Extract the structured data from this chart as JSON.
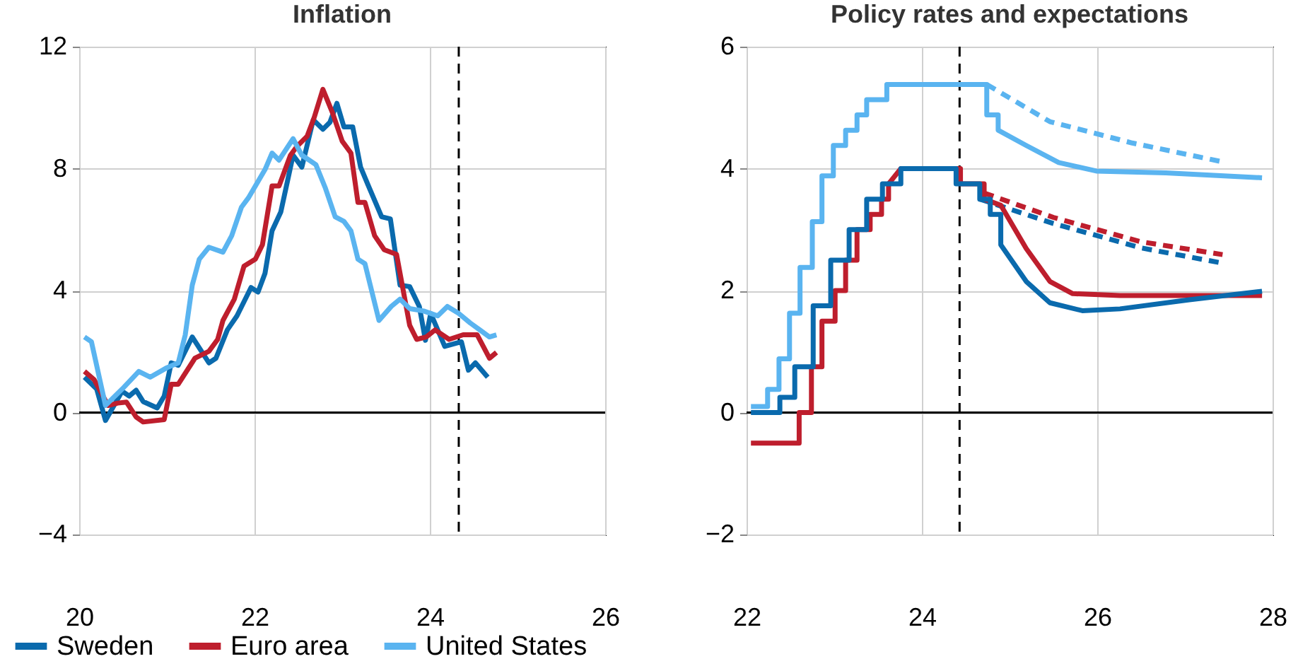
{
  "chart_data": [
    {
      "type": "line",
      "title": "Inflation",
      "xlim": [
        20,
        26
      ],
      "xticks": [
        20,
        22,
        24,
        26
      ],
      "ylim": [
        -4,
        12
      ],
      "yticks": [
        -4,
        0,
        4,
        8,
        12
      ],
      "grid": true,
      "legend": "bottom",
      "ref_lines": [
        {
          "axis": "x",
          "value": 24.33,
          "line_style": "dashed",
          "color": "#000000"
        },
        {
          "axis": "y",
          "value": 0,
          "line_style": "solid",
          "color": "#000000"
        }
      ],
      "series": [
        {
          "name": "Sweden",
          "color": "#0a6aad",
          "x": [
            20.06,
            20.2,
            20.3,
            20.49,
            20.57,
            20.65,
            20.73,
            20.89,
            20.97,
            21.05,
            21.13,
            21.29,
            21.48,
            21.56,
            21.69,
            21.8,
            21.96,
            22.04,
            22.12,
            22.2,
            22.3,
            22.44,
            22.54,
            22.67,
            22.78,
            22.86,
            22.94,
            23.02,
            23.12,
            23.21,
            23.29,
            23.45,
            23.55,
            23.66,
            23.77,
            23.88,
            23.95,
            24.01,
            24.17,
            24.36,
            24.44,
            24.52,
            24.66
          ],
          "values": [
            1.16,
            0.77,
            -0.26,
            0.7,
            0.54,
            0.73,
            0.36,
            0.15,
            0.54,
            1.63,
            1.55,
            2.48,
            1.63,
            1.78,
            2.71,
            3.17,
            4.1,
            3.95,
            4.57,
            5.96,
            6.58,
            8.44,
            8.05,
            9.6,
            9.29,
            9.52,
            10.14,
            9.37,
            9.37,
            8.05,
            7.5,
            6.42,
            6.35,
            4.18,
            4.13,
            3.48,
            2.37,
            3.25,
            2.17,
            2.32,
            1.39,
            1.63,
            1.16
          ]
        },
        {
          "name": "Euro area",
          "color": "#be1e2d",
          "x": [
            20.06,
            20.17,
            20.33,
            20.44,
            20.54,
            20.65,
            20.73,
            20.97,
            21.05,
            21.13,
            21.32,
            21.48,
            21.58,
            21.64,
            21.77,
            21.88,
            22.01,
            22.09,
            22.2,
            22.28,
            22.41,
            22.49,
            22.6,
            22.68,
            22.78,
            22.89,
            23.0,
            23.1,
            23.18,
            23.26,
            23.37,
            23.48,
            23.62,
            23.72,
            23.77,
            23.85,
            23.96,
            24.06,
            24.22,
            24.38,
            24.54,
            24.68,
            24.76
          ],
          "values": [
            1.35,
            1.08,
            0.23,
            0.31,
            0.34,
            -0.15,
            -0.31,
            -0.23,
            0.93,
            0.93,
            1.78,
            2.01,
            2.4,
            3.02,
            3.72,
            4.8,
            5.03,
            5.5,
            7.43,
            7.43,
            8.44,
            8.75,
            9.06,
            9.67,
            10.6,
            9.83,
            8.9,
            8.51,
            6.89,
            6.89,
            5.8,
            5.34,
            5.19,
            3.64,
            2.86,
            2.4,
            2.48,
            2.71,
            2.4,
            2.55,
            2.55,
            1.78,
            1.97
          ]
        },
        {
          "name": "United States",
          "color": "#5ab4f0",
          "x": [
            20.06,
            20.14,
            20.3,
            20.49,
            20.68,
            20.81,
            21.0,
            21.13,
            21.21,
            21.29,
            21.37,
            21.48,
            21.64,
            21.74,
            21.85,
            21.93,
            22.12,
            22.2,
            22.28,
            22.44,
            22.54,
            22.7,
            22.81,
            22.92,
            23.02,
            23.1,
            23.18,
            23.26,
            23.42,
            23.56,
            23.66,
            23.77,
            23.93,
            24.09,
            24.2,
            24.33,
            24.46,
            24.57,
            24.68,
            24.76
          ],
          "values": [
            2.48,
            2.32,
            0.23,
            0.77,
            1.35,
            1.16,
            1.47,
            1.63,
            2.55,
            4.18,
            5.03,
            5.42,
            5.26,
            5.8,
            6.73,
            7.04,
            7.97,
            8.51,
            8.28,
            8.98,
            8.44,
            8.13,
            7.35,
            6.42,
            6.27,
            5.96,
            5.03,
            4.88,
            3.02,
            3.48,
            3.72,
            3.41,
            3.33,
            3.17,
            3.48,
            3.25,
            2.94,
            2.71,
            2.48,
            2.55
          ]
        }
      ]
    },
    {
      "type": "line",
      "title": "Policy rates and expectations",
      "xlim": [
        22,
        28
      ],
      "xticks": [
        22,
        24,
        26,
        28
      ],
      "ylim": [
        -2,
        6
      ],
      "yticks": [
        -2,
        0,
        2,
        4,
        6
      ],
      "grid": true,
      "ref_lines": [
        {
          "axis": "x",
          "value": 24.43,
          "line_style": "dashed",
          "color": "#000000"
        },
        {
          "axis": "y",
          "value": 0,
          "line_style": "solid",
          "color": "#000000"
        }
      ],
      "series": [
        {
          "color": "#5ab4f0",
          "line_style": "dashed",
          "x": [
            24.74,
            25.46,
            26.4,
            27.4
          ],
          "values": [
            5.38,
            4.77,
            4.42,
            4.12
          ]
        },
        {
          "color": "#be1e2d",
          "line_style": "dashed",
          "x": [
            24.71,
            25.5,
            26.5,
            27.43
          ],
          "values": [
            3.6,
            3.2,
            2.8,
            2.59
          ]
        },
        {
          "color": "#0a6aad",
          "line_style": "dashed",
          "x": [
            24.66,
            25.5,
            26.5,
            27.43
          ],
          "values": [
            3.5,
            3.1,
            2.7,
            2.45
          ]
        },
        {
          "color": "#5ab4f0",
          "x": [
            22.05,
            22.24,
            22.24,
            22.37,
            22.37,
            22.49,
            22.49,
            22.61,
            22.61,
            22.75,
            22.75,
            22.86,
            22.86,
            22.99,
            22.99,
            23.13,
            23.13,
            23.26,
            23.26,
            23.37,
            23.37,
            23.6,
            23.6,
            24.74,
            24.74,
            24.87,
            24.87,
            25.19,
            25.56,
            25.99,
            26.78,
            27.88
          ],
          "values": [
            0.1,
            0.1,
            0.38,
            0.38,
            0.88,
            0.88,
            1.63,
            1.63,
            2.38,
            2.38,
            3.13,
            3.13,
            3.88,
            3.88,
            4.38,
            4.38,
            4.63,
            4.63,
            4.88,
            4.88,
            5.13,
            5.13,
            5.38,
            5.38,
            4.88,
            4.88,
            4.63,
            4.38,
            4.1,
            3.96,
            3.93,
            3.85
          ]
        },
        {
          "color": "#be1e2d",
          "x": [
            22.05,
            22.6,
            22.6,
            22.74,
            22.74,
            22.86,
            22.86,
            23.01,
            23.01,
            23.13,
            23.13,
            23.26,
            23.26,
            23.41,
            23.41,
            23.54,
            23.54,
            23.62,
            23.62,
            23.76,
            24.44,
            24.44,
            24.71,
            24.71,
            24.9,
            25.19,
            25.46,
            25.72,
            26.26,
            27.88
          ],
          "values": [
            -0.5,
            -0.5,
            0,
            0,
            0.75,
            0.75,
            1.5,
            1.5,
            2.0,
            2.0,
            2.5,
            2.5,
            3.0,
            3.0,
            3.25,
            3.25,
            3.5,
            3.5,
            3.75,
            4.0,
            4.0,
            3.75,
            3.75,
            3.5,
            3.4,
            2.69,
            2.15,
            1.95,
            1.92,
            1.92
          ]
        },
        {
          "color": "#0a6aad",
          "x": [
            22.05,
            22.38,
            22.38,
            22.55,
            22.55,
            22.76,
            22.76,
            22.96,
            22.96,
            23.17,
            23.17,
            23.37,
            23.37,
            23.55,
            23.55,
            23.76,
            23.76,
            24.39,
            24.39,
            24.66,
            24.66,
            24.78,
            24.78,
            24.9,
            24.9,
            25.19,
            25.46,
            25.83,
            26.26,
            27.05,
            27.88
          ],
          "values": [
            0,
            0,
            0.25,
            0.25,
            0.75,
            0.75,
            1.75,
            1.75,
            2.5,
            2.5,
            3.0,
            3.0,
            3.5,
            3.5,
            3.75,
            3.75,
            4.0,
            4.0,
            3.75,
            3.75,
            3.5,
            3.5,
            3.25,
            3.25,
            2.75,
            2.15,
            1.8,
            1.67,
            1.7,
            1.85,
            1.99
          ]
        }
      ]
    }
  ]
}
